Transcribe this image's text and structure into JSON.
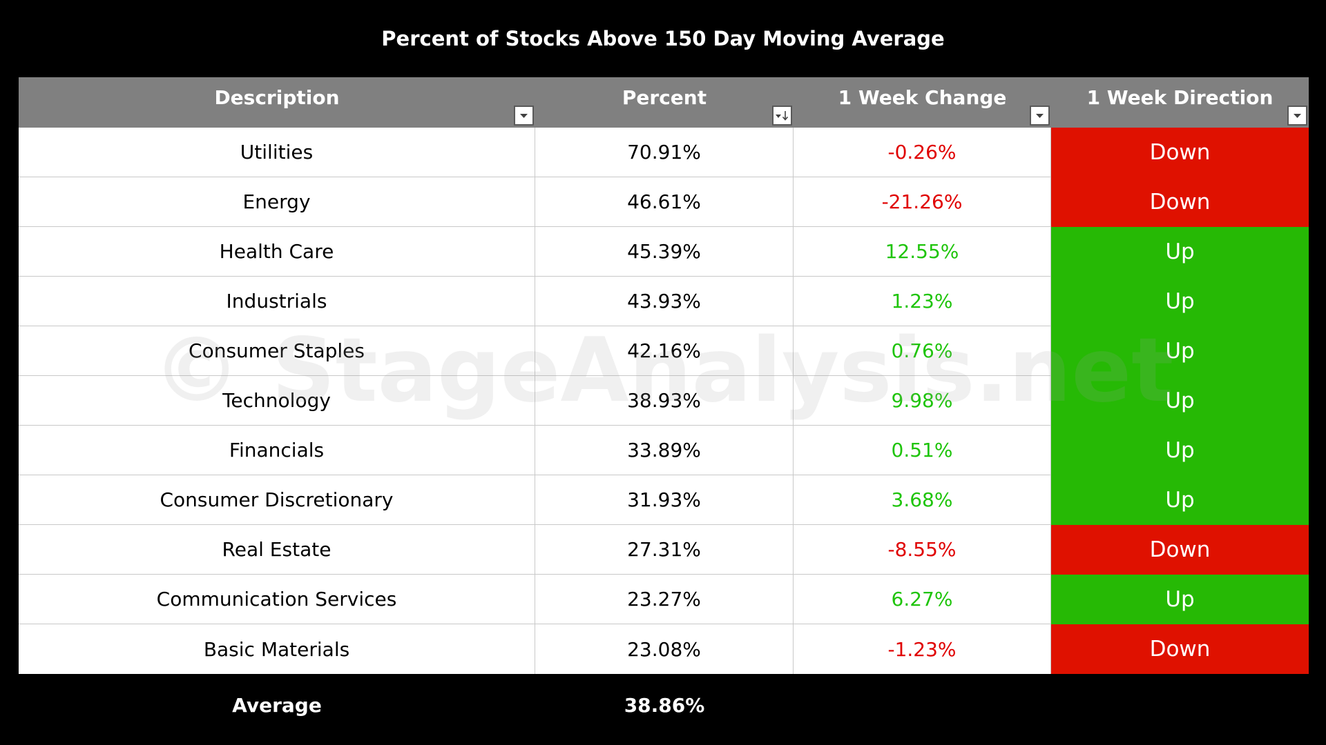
{
  "chart_data": {
    "type": "table",
    "title": "Percent of Stocks Above 150 Day Moving Average",
    "columns": [
      "Description",
      "Percent",
      "1 Week Change",
      "1 Week Direction"
    ],
    "rows": [
      {
        "description": "Utilities",
        "percent": "70.91%",
        "change": "-0.26%",
        "change_value": -0.26,
        "direction": "Down"
      },
      {
        "description": "Energy",
        "percent": "46.61%",
        "change": "-21.26%",
        "change_value": -21.26,
        "direction": "Down"
      },
      {
        "description": "Health Care",
        "percent": "45.39%",
        "change": "12.55%",
        "change_value": 12.55,
        "direction": "Up"
      },
      {
        "description": "Industrials",
        "percent": "43.93%",
        "change": "1.23%",
        "change_value": 1.23,
        "direction": "Up"
      },
      {
        "description": "Consumer Staples",
        "percent": "42.16%",
        "change": "0.76%",
        "change_value": 0.76,
        "direction": "Up"
      },
      {
        "description": "Technology",
        "percent": "38.93%",
        "change": "9.98%",
        "change_value": 9.98,
        "direction": "Up"
      },
      {
        "description": "Financials",
        "percent": "33.89%",
        "change": "0.51%",
        "change_value": 0.51,
        "direction": "Up"
      },
      {
        "description": "Consumer Discretionary",
        "percent": "31.93%",
        "change": "3.68%",
        "change_value": 3.68,
        "direction": "Up"
      },
      {
        "description": "Real Estate",
        "percent": "27.31%",
        "change": "-8.55%",
        "change_value": -8.55,
        "direction": "Down"
      },
      {
        "description": "Communication Services",
        "percent": "23.27%",
        "change": "6.27%",
        "change_value": 6.27,
        "direction": "Up"
      },
      {
        "description": "Basic Materials",
        "percent": "23.08%",
        "change": "-1.23%",
        "change_value": -1.23,
        "direction": "Down"
      }
    ],
    "average": {
      "label": "Average",
      "percent": "38.86%"
    },
    "watermark": "© StageAnalysis.net"
  },
  "colors": {
    "background": "#000000",
    "header_bg": "#808080",
    "up_bg": "#26b905",
    "down_bg": "#df1100",
    "positive_text": "#1ec40a",
    "negative_text": "#e00000"
  },
  "icons": {
    "filter": "dropdown-filter-icon",
    "sort": "sort-descending-filter-icon"
  }
}
